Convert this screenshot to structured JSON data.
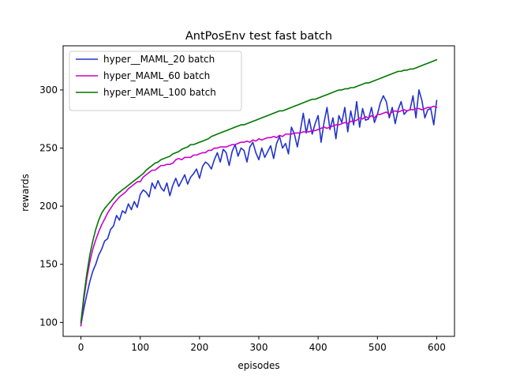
{
  "chart_data": {
    "type": "line",
    "title": "AntPosEnv test fast batch",
    "xlabel": "episodes",
    "ylabel": "rewards",
    "xlim": [
      -30,
      630
    ],
    "ylim": [
      88,
      338
    ],
    "xticks": [
      0,
      100,
      200,
      300,
      400,
      500,
      600
    ],
    "yticks": [
      100,
      150,
      200,
      250,
      300
    ],
    "grid": false,
    "legend_placement": "top-left",
    "series": [
      {
        "name": "hyper__MAML_20 batch",
        "color": "#2233cc",
        "x": [
          0,
          5,
          10,
          15,
          20,
          25,
          30,
          35,
          40,
          45,
          50,
          55,
          60,
          65,
          70,
          75,
          80,
          85,
          90,
          95,
          100,
          105,
          110,
          115,
          120,
          125,
          130,
          135,
          140,
          145,
          150,
          155,
          160,
          165,
          170,
          175,
          180,
          185,
          190,
          195,
          200,
          205,
          210,
          215,
          220,
          225,
          230,
          235,
          240,
          245,
          250,
          255,
          260,
          265,
          270,
          275,
          280,
          285,
          290,
          295,
          300,
          305,
          310,
          315,
          320,
          325,
          330,
          335,
          340,
          345,
          350,
          355,
          360,
          365,
          370,
          375,
          380,
          385,
          390,
          395,
          400,
          405,
          410,
          415,
          420,
          425,
          430,
          435,
          440,
          445,
          450,
          455,
          460,
          465,
          470,
          475,
          480,
          485,
          490,
          495,
          500,
          505,
          510,
          515,
          520,
          525,
          530,
          535,
          540,
          545,
          550,
          555,
          560,
          565,
          570,
          575,
          580,
          585,
          590,
          595,
          600
        ],
        "y": [
          98,
          112,
          124,
          135,
          144,
          150,
          158,
          163,
          170,
          172,
          180,
          183,
          192,
          188,
          196,
          194,
          202,
          197,
          204,
          199,
          210,
          214,
          212,
          208,
          220,
          215,
          222,
          216,
          213,
          220,
          209,
          218,
          224,
          217,
          222,
          227,
          219,
          225,
          228,
          232,
          224,
          234,
          238,
          236,
          232,
          240,
          246,
          238,
          249,
          246,
          235,
          247,
          253,
          243,
          250,
          248,
          238,
          251,
          255,
          246,
          240,
          250,
          242,
          247,
          252,
          241,
          254,
          260,
          250,
          254,
          245,
          268,
          262,
          251,
          265,
          280,
          263,
          275,
          262,
          271,
          278,
          255,
          272,
          285,
          266,
          276,
          258,
          278,
          272,
          285,
          264,
          282,
          270,
          290,
          268,
          284,
          274,
          275,
          285,
          272,
          279,
          289,
          295,
          290,
          276,
          285,
          271,
          283,
          290,
          279,
          282,
          283,
          295,
          276,
          300,
          291,
          276,
          283,
          284,
          270,
          291
        ]
      },
      {
        "name": "hyper_MAML_60 batch",
        "color": "#cc00cc",
        "x": [
          0,
          5,
          10,
          15,
          20,
          25,
          30,
          35,
          40,
          45,
          50,
          55,
          60,
          65,
          70,
          75,
          80,
          85,
          90,
          95,
          100,
          105,
          110,
          115,
          120,
          125,
          130,
          135,
          140,
          145,
          150,
          155,
          160,
          165,
          170,
          175,
          180,
          185,
          190,
          195,
          200,
          205,
          210,
          215,
          220,
          225,
          230,
          235,
          240,
          245,
          250,
          255,
          260,
          265,
          270,
          275,
          280,
          285,
          290,
          295,
          300,
          305,
          310,
          315,
          320,
          325,
          330,
          335,
          340,
          345,
          350,
          355,
          360,
          365,
          370,
          375,
          380,
          385,
          390,
          395,
          400,
          405,
          410,
          415,
          420,
          425,
          430,
          435,
          440,
          445,
          450,
          455,
          460,
          465,
          470,
          475,
          480,
          485,
          490,
          495,
          500,
          505,
          510,
          515,
          520,
          525,
          530,
          535,
          540,
          545,
          550,
          555,
          560,
          565,
          570,
          575,
          580,
          585,
          590,
          595,
          600
        ],
        "y": [
          97,
          120,
          138,
          152,
          163,
          171,
          178,
          184,
          189,
          194,
          198,
          202,
          205,
          208,
          210,
          212,
          215,
          217,
          219,
          221,
          221,
          225,
          227,
          229,
          231,
          231,
          233,
          235,
          235,
          236,
          236,
          237,
          240,
          241,
          240,
          242,
          242,
          242,
          244,
          244,
          245,
          246,
          246,
          248,
          248,
          250,
          250,
          251,
          251,
          251,
          252,
          253,
          253,
          254,
          255,
          255,
          256,
          255,
          257,
          256,
          258,
          257,
          258,
          259,
          259,
          260,
          259,
          261,
          260,
          262,
          262,
          262,
          263,
          263,
          263,
          264,
          264,
          264,
          265,
          265,
          266,
          267,
          268,
          267,
          268,
          269,
          270,
          270,
          271,
          272,
          271,
          273,
          273,
          274,
          276,
          275,
          277,
          276,
          278,
          276,
          279,
          279,
          280,
          281,
          279,
          281,
          282,
          281,
          282,
          283,
          282,
          283,
          283,
          284,
          284,
          283,
          284,
          285,
          285,
          286,
          285
        ]
      },
      {
        "name": "hyper_MAML_100 batch",
        "color": "#007700",
        "x": [
          0,
          5,
          10,
          15,
          20,
          25,
          30,
          35,
          40,
          45,
          50,
          55,
          60,
          65,
          70,
          75,
          80,
          85,
          90,
          95,
          100,
          105,
          110,
          115,
          120,
          125,
          130,
          135,
          140,
          145,
          150,
          155,
          160,
          165,
          170,
          175,
          180,
          185,
          190,
          195,
          200,
          205,
          210,
          215,
          220,
          225,
          230,
          235,
          240,
          245,
          250,
          255,
          260,
          265,
          270,
          275,
          280,
          285,
          290,
          295,
          300,
          305,
          310,
          315,
          320,
          325,
          330,
          335,
          340,
          345,
          350,
          355,
          360,
          365,
          370,
          375,
          380,
          385,
          390,
          395,
          400,
          405,
          410,
          415,
          420,
          425,
          430,
          435,
          440,
          445,
          450,
          455,
          460,
          465,
          470,
          475,
          480,
          485,
          490,
          495,
          500,
          505,
          510,
          515,
          520,
          525,
          530,
          535,
          540,
          545,
          550,
          555,
          560,
          565,
          570,
          575,
          580,
          585,
          590,
          595,
          600
        ],
        "y": [
          100,
          123,
          142,
          158,
          170,
          180,
          188,
          194,
          198,
          201,
          204,
          207,
          210,
          212,
          214,
          216,
          218,
          220,
          222,
          224,
          226,
          228,
          231,
          233,
          235,
          237,
          238,
          240,
          241,
          242,
          243,
          245,
          246,
          247,
          249,
          250,
          251,
          253,
          253,
          254,
          255,
          256,
          257,
          258,
          260,
          261,
          262,
          263,
          264,
          265,
          266,
          267,
          268,
          269,
          270,
          270,
          271,
          272,
          273,
          274,
          275,
          276,
          277,
          278,
          279,
          280,
          281,
          282,
          282,
          283,
          284,
          285,
          286,
          287,
          288,
          289,
          290,
          291,
          292,
          292,
          293,
          294,
          295,
          296,
          297,
          298,
          299,
          300,
          300,
          301,
          301,
          302,
          302,
          303,
          304,
          305,
          306,
          306,
          307,
          308,
          309,
          310,
          311,
          312,
          313,
          314,
          315,
          316,
          316,
          317,
          317,
          318,
          318,
          319,
          320,
          321,
          322,
          323,
          324,
          325,
          326
        ]
      }
    ]
  }
}
